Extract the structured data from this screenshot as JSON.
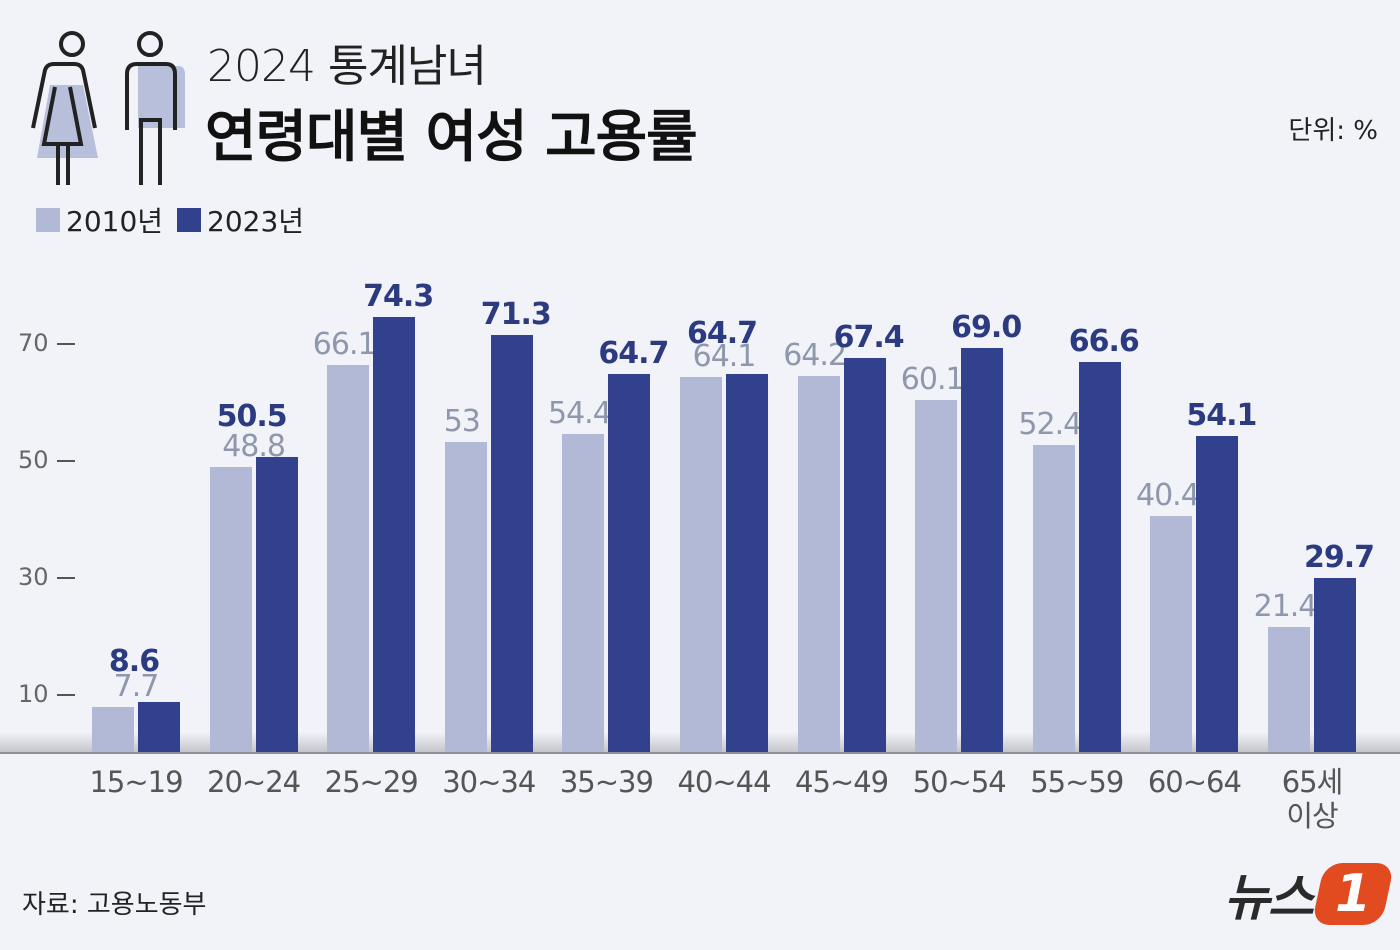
{
  "header": {
    "subtitle": "2024 통계남녀",
    "title": "연령대별 여성 고용률",
    "unit": "단위: %"
  },
  "legend": [
    {
      "label": "2010년",
      "color": "#b1b9d6"
    },
    {
      "label": "2023년",
      "color": "#31418e"
    }
  ],
  "yaxis": {
    "ticks": [
      "70",
      "50",
      "30",
      "10"
    ]
  },
  "footer": {
    "source": "자료: 고용노동부",
    "logo_text": "뉴스",
    "logo_mark": "1"
  },
  "chart_data": {
    "type": "bar",
    "title": "연령대별 여성 고용률",
    "subtitle": "2024 통계남녀",
    "xlabel": "",
    "ylabel": "단위: %",
    "ylim": [
      0,
      78
    ],
    "yticks": [
      10,
      30,
      50,
      70
    ],
    "grid": false,
    "legend_position": "top-left",
    "categories": [
      "15~19",
      "20~24",
      "25~29",
      "30~34",
      "35~39",
      "40~44",
      "45~49",
      "50~54",
      "55~59",
      "60~64",
      "65세 이상"
    ],
    "series": [
      {
        "name": "2010년",
        "color": "#b1b9d6",
        "values": [
          7.7,
          48.8,
          66.1,
          53,
          54.4,
          64.1,
          64.2,
          60.1,
          52.4,
          40.4,
          21.4
        ],
        "labels": [
          "7.7",
          "48.8",
          "66.1",
          "53",
          "54.4",
          "64.1",
          "64.2",
          "60.1",
          "52.4",
          "40.4",
          "21.4"
        ]
      },
      {
        "name": "2023년",
        "color": "#31418e",
        "values": [
          8.6,
          50.5,
          74.3,
          71.3,
          64.7,
          64.7,
          67.4,
          69.0,
          66.6,
          54.1,
          29.7
        ],
        "labels": [
          "8.6",
          "50.5",
          "74.3",
          "71.3",
          "64.7",
          "64.7",
          "67.4",
          "69.0",
          "66.6",
          "54.1",
          "29.7"
        ]
      }
    ],
    "source": "자료: 고용노동부"
  }
}
